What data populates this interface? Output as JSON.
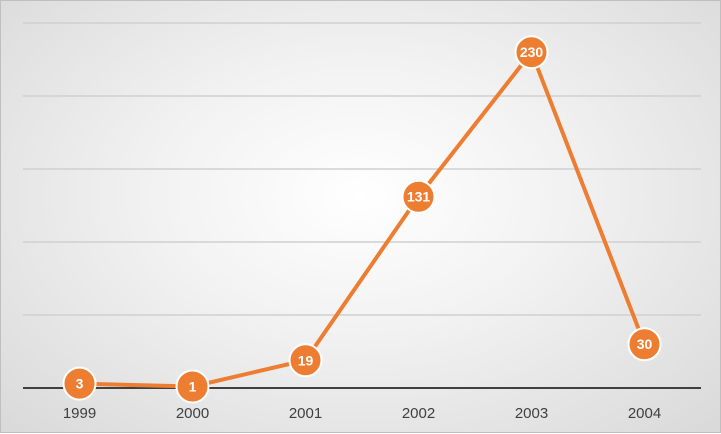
{
  "chart_data": {
    "type": "line",
    "categories": [
      "1999",
      "2000",
      "2001",
      "2002",
      "2003",
      "2004"
    ],
    "series": [
      {
        "values": [
          3,
          1,
          19,
          131,
          230,
          30
        ]
      }
    ],
    "ylim": [
      0,
      250
    ],
    "grid": true,
    "gridline_step": 50,
    "colors": {
      "series": "#ed7d31",
      "marker": "#ed7d31",
      "marker_text": "#ffffff",
      "gridline": "#d0d0d0",
      "axis": "#404040"
    }
  }
}
